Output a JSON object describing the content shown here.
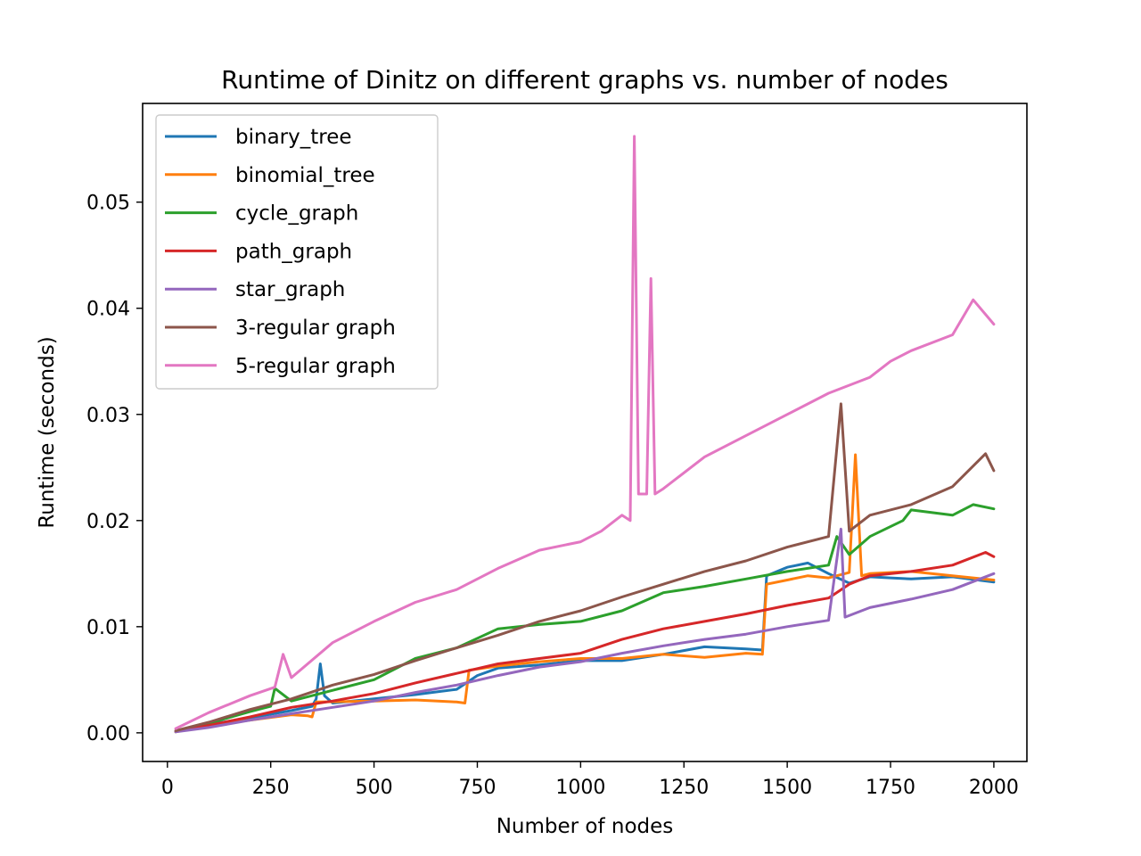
{
  "chart_data": {
    "type": "line",
    "title": "Runtime of Dinitz on different graphs vs. number of nodes",
    "xlabel": "Number of nodes",
    "ylabel": "Runtime (seconds)",
    "xlim": [
      -60,
      2080
    ],
    "ylim": [
      -0.0027,
      0.0593
    ],
    "xticks": [
      0,
      250,
      500,
      750,
      1000,
      1250,
      1500,
      1750,
      2000
    ],
    "yticks": [
      0.0,
      0.01,
      0.02,
      0.03,
      0.04,
      0.05
    ],
    "xtick_labels": [
      "0",
      "250",
      "500",
      "750",
      "1000",
      "1250",
      "1500",
      "1750",
      "2000"
    ],
    "ytick_labels": [
      "0.00",
      "0.01",
      "0.02",
      "0.03",
      "0.04",
      "0.05"
    ],
    "grid": false,
    "legend_position": "top-left",
    "series": [
      {
        "name": "binary_tree",
        "color": "#1f77b4",
        "x": [
          20,
          100,
          200,
          300,
          350,
          360,
          370,
          380,
          400,
          500,
          600,
          700,
          750,
          800,
          900,
          1000,
          1100,
          1200,
          1300,
          1400,
          1440,
          1450,
          1500,
          1550,
          1600,
          1650,
          1700,
          1750,
          1800,
          1900,
          2000
        ],
        "y": [
          0.0001,
          0.0008,
          0.0014,
          0.0021,
          0.0025,
          0.0032,
          0.0065,
          0.0035,
          0.0028,
          0.0032,
          0.0036,
          0.0041,
          0.0054,
          0.0061,
          0.0064,
          0.0068,
          0.0068,
          0.0074,
          0.0081,
          0.0079,
          0.0078,
          0.0148,
          0.0156,
          0.016,
          0.015,
          0.0141,
          0.0147,
          0.0146,
          0.0145,
          0.0147,
          0.0142
        ]
      },
      {
        "name": "binomial_tree",
        "color": "#ff7f0e",
        "x": [
          20,
          100,
          200,
          300,
          340,
          350,
          360,
          500,
          600,
          700,
          720,
          730,
          800,
          900,
          1000,
          1100,
          1200,
          1300,
          1400,
          1440,
          1450,
          1500,
          1550,
          1600,
          1650,
          1665,
          1680,
          1700,
          1800,
          1900,
          2000
        ],
        "y": [
          0.0001,
          0.0007,
          0.0012,
          0.0017,
          0.0016,
          0.0015,
          0.0029,
          0.003,
          0.0031,
          0.0029,
          0.0028,
          0.0059,
          0.0063,
          0.0067,
          0.007,
          0.007,
          0.0074,
          0.0071,
          0.0075,
          0.0074,
          0.014,
          0.0144,
          0.0148,
          0.0146,
          0.0151,
          0.0262,
          0.0148,
          0.015,
          0.0152,
          0.0148,
          0.0144
        ]
      },
      {
        "name": "cycle_graph",
        "color": "#2ca02c",
        "x": [
          20,
          100,
          200,
          250,
          260,
          300,
          400,
          500,
          600,
          700,
          800,
          900,
          1000,
          1100,
          1200,
          1300,
          1400,
          1500,
          1600,
          1620,
          1650,
          1700,
          1780,
          1800,
          1900,
          1950,
          2000
        ],
        "y": [
          0.0001,
          0.0009,
          0.002,
          0.0025,
          0.0042,
          0.003,
          0.004,
          0.005,
          0.007,
          0.008,
          0.0098,
          0.0102,
          0.0105,
          0.0115,
          0.0132,
          0.0138,
          0.0145,
          0.0152,
          0.0158,
          0.0185,
          0.0168,
          0.0185,
          0.02,
          0.021,
          0.0205,
          0.0215,
          0.0211
        ]
      },
      {
        "name": "path_graph",
        "color": "#d62728",
        "x": [
          20,
          100,
          200,
          300,
          400,
          500,
          600,
          700,
          800,
          900,
          1000,
          1100,
          1200,
          1300,
          1400,
          1500,
          1600,
          1650,
          1700,
          1800,
          1900,
          1980,
          2000
        ],
        "y": [
          0.0001,
          0.0007,
          0.0015,
          0.0024,
          0.003,
          0.0037,
          0.0047,
          0.0056,
          0.0065,
          0.007,
          0.0075,
          0.0088,
          0.0098,
          0.0105,
          0.0112,
          0.012,
          0.0127,
          0.014,
          0.0148,
          0.0152,
          0.0158,
          0.017,
          0.0166
        ]
      },
      {
        "name": "star_graph",
        "color": "#9467bd",
        "x": [
          20,
          100,
          200,
          300,
          400,
          500,
          600,
          700,
          800,
          900,
          1000,
          1100,
          1200,
          1300,
          1400,
          1500,
          1600,
          1630,
          1640,
          1700,
          1800,
          1900,
          2000
        ],
        "y": [
          0.0001,
          0.0005,
          0.0012,
          0.0018,
          0.0024,
          0.003,
          0.0038,
          0.0045,
          0.0054,
          0.0062,
          0.0067,
          0.0075,
          0.0082,
          0.0088,
          0.0093,
          0.01,
          0.0106,
          0.0192,
          0.0109,
          0.0118,
          0.0126,
          0.0135,
          0.015
        ]
      },
      {
        "name": "3-regular graph",
        "color": "#8c564b",
        "x": [
          20,
          100,
          200,
          300,
          400,
          500,
          600,
          700,
          800,
          900,
          1000,
          1100,
          1200,
          1300,
          1400,
          1500,
          1600,
          1630,
          1650,
          1700,
          1800,
          1900,
          1980,
          2000
        ],
        "y": [
          0.0002,
          0.001,
          0.0022,
          0.0032,
          0.0045,
          0.0055,
          0.0068,
          0.008,
          0.0092,
          0.0105,
          0.0115,
          0.0128,
          0.014,
          0.0152,
          0.0162,
          0.0175,
          0.0185,
          0.031,
          0.019,
          0.0205,
          0.0215,
          0.0232,
          0.0263,
          0.0247
        ]
      },
      {
        "name": "5-regular graph",
        "color": "#e377c2",
        "x": [
          20,
          100,
          200,
          260,
          280,
          300,
          400,
          500,
          600,
          700,
          800,
          900,
          1000,
          1050,
          1100,
          1120,
          1130,
          1140,
          1160,
          1170,
          1180,
          1200,
          1300,
          1400,
          1500,
          1600,
          1700,
          1750,
          1800,
          1900,
          1950,
          2000
        ],
        "y": [
          0.0004,
          0.0019,
          0.0035,
          0.0043,
          0.0074,
          0.0052,
          0.0085,
          0.0105,
          0.0123,
          0.0135,
          0.0155,
          0.0172,
          0.018,
          0.019,
          0.0205,
          0.02,
          0.0562,
          0.0225,
          0.0225,
          0.0428,
          0.0225,
          0.023,
          0.026,
          0.028,
          0.03,
          0.032,
          0.0335,
          0.035,
          0.036,
          0.0375,
          0.0408,
          0.0385
        ]
      }
    ]
  }
}
